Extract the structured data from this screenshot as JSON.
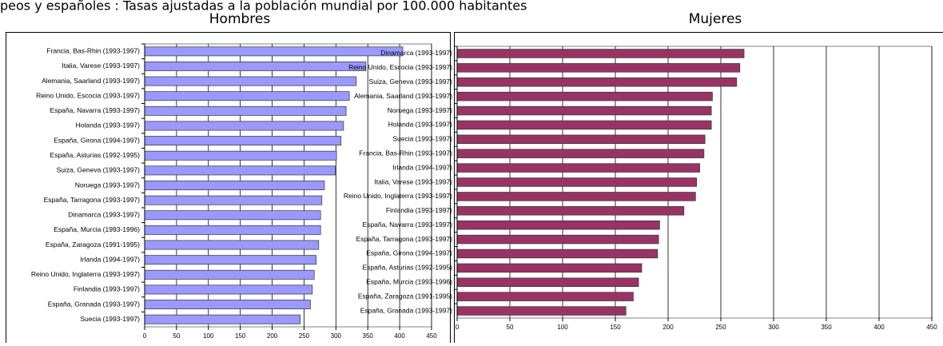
{
  "title": "peos y españoles : Tasas ajustadas a la población mundial por 100.000 habitantes",
  "chart_data": [
    {
      "type": "barh",
      "title": "Hombres",
      "color": "#9999ff",
      "grid": true,
      "categories": [
        "Francia, Bas-Rhin (1993-1997)",
        "Italia, Varese (1993-1997)",
        "Alemania, Saarland (1993-1997)",
        "Reino Unido, Escocia (1993-1997)",
        "España, Navarra (1993-1997)",
        "Holanda (1993-1997)",
        "España, Girona (1994-1997)",
        "España, Asturias (1992-1995)",
        "Suiza, Geneva (1993-1997)",
        "Noruega (1993-1997)",
        "España, Tarragona (1993-1997)",
        "Dinamarca (1993-1997)",
        "España, Murcia (1993-1996)",
        "España, Zaragoza (1991-1995)",
        "Irlanda (1994-1997)",
        "Reino Unido, Inglaterra (1993-1997)",
        "Finlandia (1993-1997)",
        "España, Granada (1993-1997)",
        "Suecia (1993-1997)"
      ],
      "values": [
        405,
        347,
        332,
        321,
        316,
        312,
        308,
        301,
        299,
        282,
        278,
        276,
        276,
        273,
        269,
        266,
        263,
        260,
        244
      ],
      "xlim": [
        0,
        450
      ],
      "xticks": [
        0,
        50,
        100,
        150,
        200,
        250,
        300,
        350,
        400,
        450
      ]
    },
    {
      "type": "barh",
      "title": "Mujeres",
      "color": "#993366",
      "grid": true,
      "categories": [
        "Dinamarca (1993-1997)",
        "Reino Unido, Escocia (1993-1997)",
        "Suiza, Geneva (1993-1997)",
        "Alemania, Saarland (1993-1997)",
        "Noruega (1993-1997)",
        "Holanda (1993-1997)",
        "Suecia (1993-1997)",
        "Francia, Bas-Rhin (1993-1997)",
        "Irlanda (1994-1997)",
        "Italia, Varese (1993-1997)",
        "Reino Unido, Inglaterra (1993-1997)",
        "Finlandia (1993-1997)",
        "España, Navarra (1993-1997)",
        "España, Tarragona (1993-1997)",
        "España, Girona (1994-1997)",
        "España, Asturias (1992-1995)",
        "España, Murcia (1993-1996)",
        "España, Zaragoza (1991-1995)",
        "España, Granada (1993-1997)"
      ],
      "values": [
        272,
        268,
        265,
        242,
        241,
        241,
        235,
        234,
        230,
        227,
        226,
        215,
        192,
        191,
        190,
        175,
        172,
        167,
        160
      ],
      "xlim": [
        0,
        450
      ],
      "xticks": [
        0,
        50,
        100,
        150,
        200,
        250,
        300,
        350,
        400,
        450
      ]
    }
  ]
}
